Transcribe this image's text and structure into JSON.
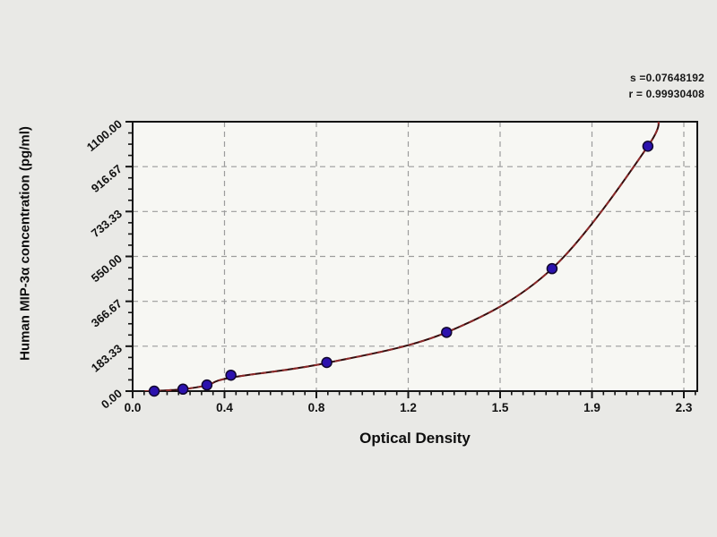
{
  "figure": {
    "background": "#e9e9e6",
    "plot_background": "#f7f7f3",
    "frame_color": "#141414",
    "grid_color": "#9c9c9c",
    "text_color": "#111111",
    "curve_color": "#8d2a2a",
    "curve_dark_color": "#330c0c",
    "marker_fill": "#2c12ae",
    "marker_stroke": "#10062e"
  },
  "annotation": {
    "line1": "s =0.07648192",
    "line2": "r = 0.99930408"
  },
  "chart_data": {
    "type": "scatter",
    "title": "",
    "xlabel": "Optical Density",
    "ylabel": "Human MIP-3α concentration (pg/ml)",
    "xlim": [
      0,
      2.356
    ],
    "ylim": [
      0,
      1100
    ],
    "grid": true,
    "legend": "none",
    "x_tick_labels": [
      "0.0",
      "0.4",
      "0.8",
      "1.2",
      "1.5",
      "1.9",
      "2.3"
    ],
    "x_tick_values": [
      0,
      0.3833,
      0.7667,
      1.15,
      1.5333,
      1.9167,
      2.3
    ],
    "y_tick_labels": [
      "0.00",
      "183.33",
      "366.67",
      "550.00",
      "733.33",
      "916.67",
      "1100.00"
    ],
    "y_tick_values": [
      0,
      183.33,
      366.67,
      550.0,
      733.33,
      916.67,
      1100.0
    ],
    "points": [
      {
        "x": 0.09,
        "y": 0
      },
      {
        "x": 0.21,
        "y": 8
      },
      {
        "x": 0.31,
        "y": 25
      },
      {
        "x": 0.41,
        "y": 65
      },
      {
        "x": 0.81,
        "y": 117
      },
      {
        "x": 1.31,
        "y": 240
      },
      {
        "x": 1.75,
        "y": 500
      },
      {
        "x": 2.15,
        "y": 1000
      }
    ],
    "fit_curve_points": [
      [
        0.05,
        0
      ],
      [
        0.09,
        1
      ],
      [
        0.21,
        8
      ],
      [
        0.31,
        24
      ],
      [
        0.41,
        55
      ],
      [
        0.81,
        115
      ],
      [
        1.31,
        240
      ],
      [
        1.75,
        500
      ],
      [
        2.15,
        1000
      ],
      [
        2.19,
        1125
      ]
    ],
    "fit_stats": {
      "s": "0.07648192",
      "r": "0.99930408"
    }
  }
}
